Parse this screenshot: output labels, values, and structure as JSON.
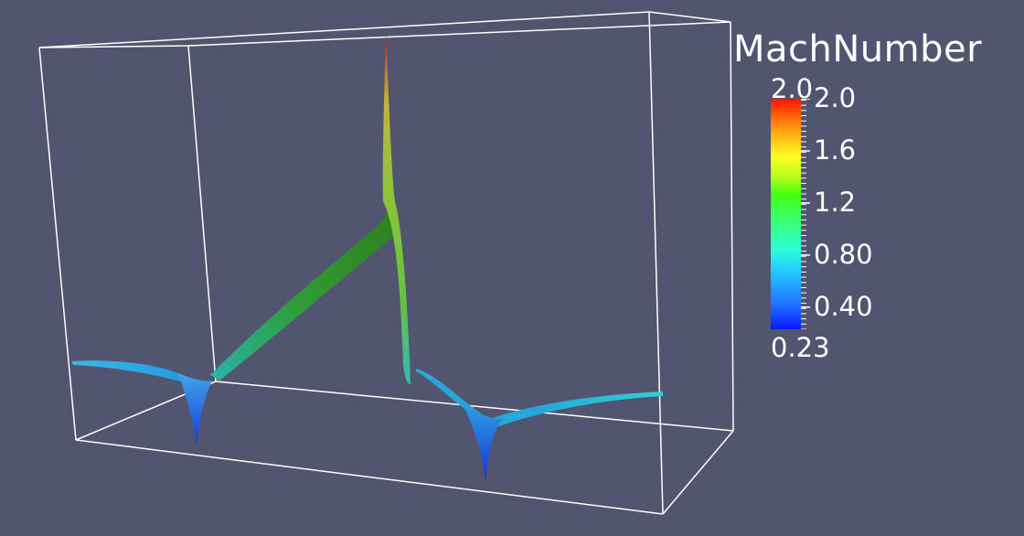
{
  "colorbar": {
    "title": "MachNumber",
    "range_max": "2.0",
    "range_min": "0.23",
    "tick_labels": [
      "2.0",
      "1.6",
      "1.2",
      "0.80",
      "0.40"
    ],
    "tick_values": [
      2.0,
      1.6,
      1.2,
      0.8,
      0.4
    ],
    "min_value": 0.23,
    "max_value": 2.0,
    "colormap": [
      "#0a18ff",
      "#25c8ff",
      "#3bff6a",
      "#ffff1f",
      "#ff1500"
    ]
  },
  "scene": {
    "background": "#525570",
    "outline_color": "#ffffff"
  }
}
